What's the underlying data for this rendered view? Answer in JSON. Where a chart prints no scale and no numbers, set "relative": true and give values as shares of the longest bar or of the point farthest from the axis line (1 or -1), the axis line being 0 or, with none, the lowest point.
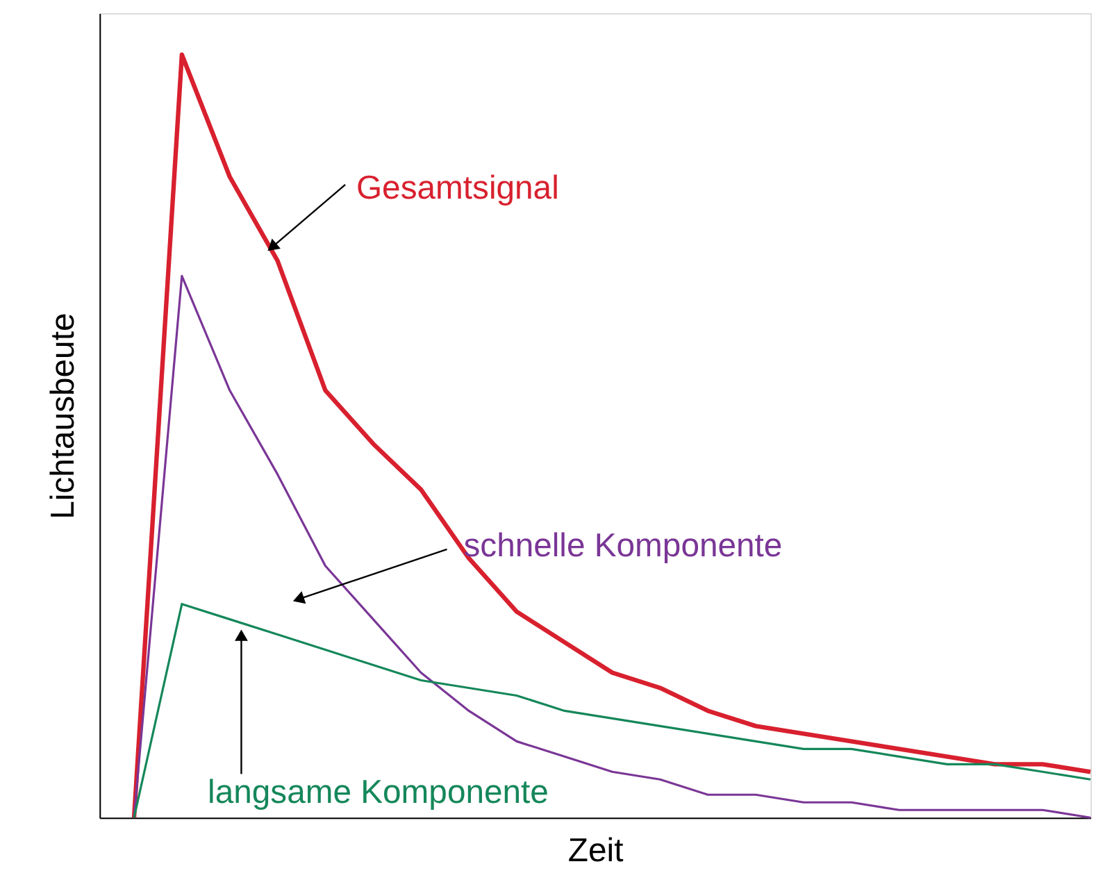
{
  "chart_data": {
    "type": "line",
    "relative": true,
    "xlabel": "Zeit",
    "ylabel": "Lichtausbeute",
    "grid": false,
    "categories": [
      null,
      null,
      null,
      null,
      null,
      null,
      null,
      null,
      null,
      null,
      null,
      null,
      null,
      null,
      null,
      null,
      null,
      null,
      null,
      null,
      null
    ],
    "series": [
      {
        "name": "Gesamtsignal",
        "color": "#d8202e",
        "values": [
          0,
          1.0,
          0.84,
          0.73,
          0.56,
          0.49,
          0.43,
          0.34,
          0.27,
          0.23,
          0.19,
          0.17,
          0.14,
          0.12,
          0.11,
          0.1,
          0.09,
          0.08,
          0.07,
          0.07,
          0.06
        ]
      },
      {
        "name": "schnelle Komponente",
        "color": "#7a3696",
        "values": [
          0,
          0.71,
          0.56,
          0.45,
          0.33,
          0.26,
          0.19,
          0.14,
          0.1,
          0.08,
          0.06,
          0.05,
          0.03,
          0.03,
          0.02,
          0.02,
          0.01,
          0.01,
          0.01,
          0.01,
          0.0
        ]
      },
      {
        "name": "langsame Komponente",
        "color": "#15875a",
        "values": [
          0,
          0.28,
          0.26,
          0.24,
          0.22,
          0.2,
          0.18,
          0.17,
          0.16,
          0.14,
          0.13,
          0.12,
          0.11,
          0.1,
          0.09,
          0.09,
          0.08,
          0.07,
          0.07,
          0.06,
          0.05
        ]
      }
    ]
  }
}
